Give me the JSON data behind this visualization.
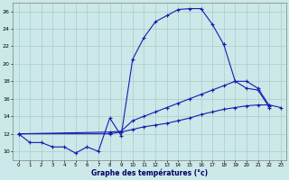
{
  "xlabel": "Graphe des températures (°c)",
  "xlim": [
    -0.5,
    23.5
  ],
  "ylim": [
    9.0,
    27.0
  ],
  "yticks": [
    10,
    12,
    14,
    16,
    18,
    20,
    22,
    24,
    26
  ],
  "xticks": [
    0,
    1,
    2,
    3,
    4,
    5,
    6,
    7,
    8,
    9,
    10,
    11,
    12,
    13,
    14,
    15,
    16,
    17,
    18,
    19,
    20,
    21,
    22,
    23
  ],
  "bg_color": "#cce8e8",
  "grid_color": "#aacccc",
  "line_color": "#1a1ab0",
  "curve1_x": [
    0,
    1,
    2,
    3,
    4,
    5,
    6,
    7,
    8,
    9,
    10,
    11,
    12,
    13,
    14,
    15,
    16,
    17,
    18
  ],
  "curve1_y": [
    12.0,
    11.0,
    11.0,
    10.5,
    10.5,
    9.8,
    10.5,
    10.0,
    13.8,
    11.8,
    20.5,
    23.0,
    24.8,
    25.5,
    26.2,
    26.3,
    26.3,
    24.5,
    22.2
  ],
  "curve2_x": [
    18,
    19,
    20,
    21,
    22
  ],
  "curve2_y": [
    22.2,
    18.0,
    17.2,
    17.0,
    15.0
  ],
  "curve3_x": [
    0,
    8,
    9,
    10,
    11,
    12,
    13,
    14,
    15,
    16,
    17,
    18,
    19,
    20,
    21,
    22
  ],
  "curve3_y": [
    12.0,
    12.2,
    12.3,
    13.5,
    14.0,
    14.5,
    15.0,
    15.5,
    16.0,
    16.5,
    17.0,
    17.5,
    18.0,
    18.0,
    17.2,
    15.2
  ],
  "curve4_x": [
    0,
    8,
    9,
    10,
    11,
    12,
    13,
    14,
    15,
    16,
    17,
    18,
    19,
    20,
    21,
    22,
    23
  ],
  "curve4_y": [
    12.0,
    12.0,
    12.2,
    12.5,
    12.8,
    13.0,
    13.2,
    13.5,
    13.8,
    14.2,
    14.5,
    14.8,
    15.0,
    15.2,
    15.3,
    15.3,
    15.0
  ]
}
